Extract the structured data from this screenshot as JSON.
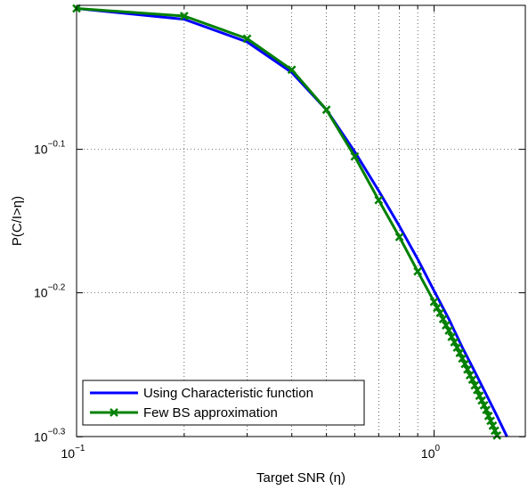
{
  "chart_data": {
    "type": "line",
    "xlabel": "Target SNR (η)",
    "ylabel": "P(C/I>η)",
    "x_scale": "log",
    "y_scale": "log",
    "xlim": [
      0.1,
      1.8
    ],
    "ylim": [
      0.5012,
      1.0
    ],
    "grid": true,
    "legend_position": "bottom-left",
    "x_ticks": [
      {
        "value": 0.1,
        "base": "10",
        "exp": "−1"
      },
      {
        "value": 1,
        "base": "10",
        "exp": "0"
      }
    ],
    "y_ticks": [
      {
        "value": 0.794,
        "base": "10",
        "exp": "−0.1"
      },
      {
        "value": 0.631,
        "base": "10",
        "exp": "−0.2"
      },
      {
        "value": 0.501,
        "base": "10",
        "exp": "−0.3"
      }
    ],
    "series": [
      {
        "name": "Using Characteristic function",
        "color": "#0000ff",
        "marker": "none",
        "x": [
          0.1,
          0.2,
          0.3,
          0.4,
          0.5,
          0.6,
          0.7,
          0.8,
          0.9,
          1.0,
          1.1,
          1.2,
          1.3,
          1.4,
          1.5,
          1.6
        ],
        "y": [
          0.995,
          0.978,
          0.943,
          0.898,
          0.846,
          0.791,
          0.743,
          0.702,
          0.666,
          0.633,
          0.605,
          0.578,
          0.556,
          0.536,
          0.518,
          0.501
        ]
      },
      {
        "name": "Few BS approximation",
        "color": "#008000",
        "marker": "x",
        "x": [
          0.1,
          0.2,
          0.3,
          0.4,
          0.5,
          0.6,
          0.7,
          0.8,
          0.9,
          1.0,
          1.02,
          1.04,
          1.06,
          1.08,
          1.1,
          1.12,
          1.14,
          1.16,
          1.18,
          1.2,
          1.22,
          1.24,
          1.26,
          1.28,
          1.3,
          1.32,
          1.34,
          1.36,
          1.38,
          1.4,
          1.42,
          1.44,
          1.46,
          1.48,
          1.5
        ],
        "y": [
          0.995,
          0.983,
          0.948,
          0.902,
          0.846,
          0.785,
          0.732,
          0.69,
          0.653,
          0.622,
          0.616,
          0.611,
          0.605,
          0.599,
          0.594,
          0.588,
          0.583,
          0.578,
          0.573,
          0.568,
          0.563,
          0.558,
          0.553,
          0.549,
          0.544,
          0.54,
          0.535,
          0.531,
          0.527,
          0.523,
          0.518,
          0.514,
          0.51,
          0.506,
          0.502
        ]
      }
    ]
  }
}
